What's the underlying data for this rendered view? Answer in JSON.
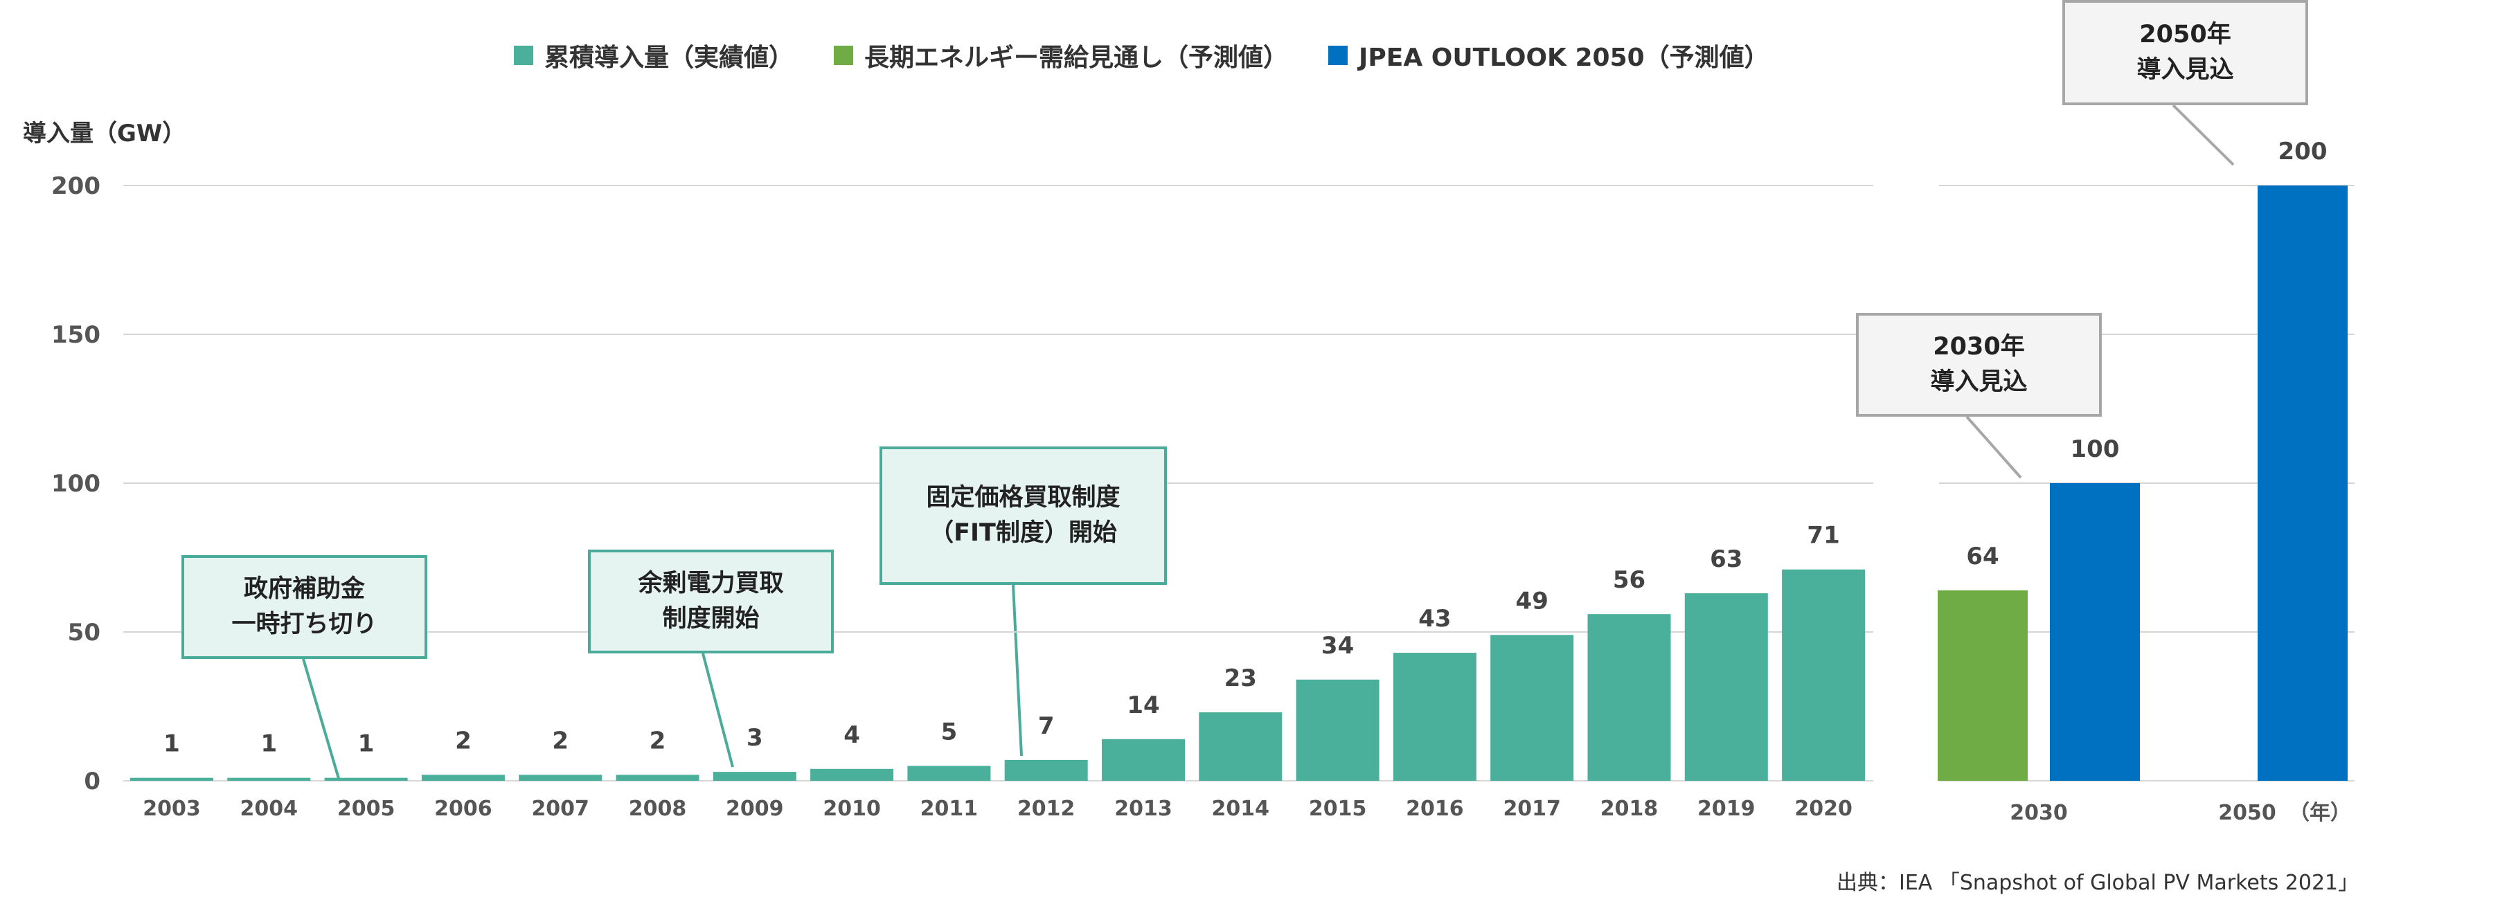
{
  "legend": [
    {
      "label": "累積導入量（実績値）",
      "color": "#4aaf9b"
    },
    {
      "label": "長期エネルギー需給見通し（予測値）",
      "color": "#6fac46"
    },
    {
      "label": "JPEA OUTLOOK 2050（予測値）",
      "color": "#0070c0"
    }
  ],
  "source": "出典：IEA 「Snapshot of Global PV Markets 2021」",
  "annotations": {
    "subsidy_end": "政府補助金\n一時打ち切り",
    "surplus_purchase": "余剰電力買取\n制度開始",
    "fit_start": "固定価格買取制度\n（FIT制度）開始",
    "outlook_2030": "2030年\n導入見込",
    "outlook_2050": "2050年\n導入見込"
  },
  "chart_data": [
    {
      "type": "bar",
      "title": "",
      "ylabel": "導入量（GW）",
      "xlabel": "",
      "ylim": [
        0,
        200
      ],
      "yticks": [
        0,
        50,
        100,
        150,
        200
      ],
      "grid": true,
      "categories": [
        "2003",
        "2004",
        "2005",
        "2006",
        "2007",
        "2008",
        "2009",
        "2010",
        "2011",
        "2012",
        "2013",
        "2014",
        "2015",
        "2016",
        "2017",
        "2018",
        "2019",
        "2020"
      ],
      "series": [
        {
          "name": "累積導入量（実績値）",
          "color": "#4aaf9b",
          "values": [
            1,
            1,
            1,
            2,
            2,
            2,
            3,
            4,
            5,
            7,
            14,
            23,
            34,
            43,
            49,
            56,
            63,
            71
          ]
        }
      ]
    },
    {
      "type": "bar",
      "title": "",
      "xlabel": "（年）",
      "ylim": [
        0,
        200
      ],
      "grid": true,
      "categories": [
        "2030",
        "2050"
      ],
      "series": [
        {
          "name": "長期エネルギー需給見通し（予測値）",
          "color": "#6fac46",
          "values": [
            64,
            null
          ]
        },
        {
          "name": "JPEA OUTLOOK 2050（予測値）",
          "color": "#0070c0",
          "values": [
            100,
            200
          ]
        }
      ]
    }
  ]
}
